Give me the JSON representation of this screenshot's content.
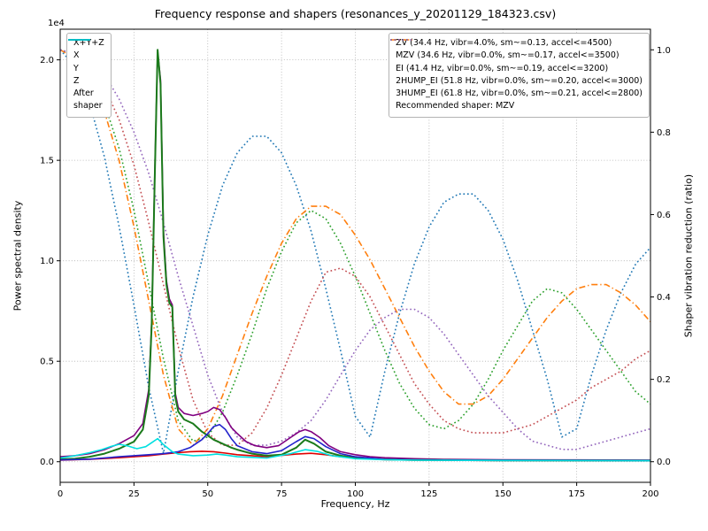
{
  "chart_data": {
    "type": "line",
    "title": "Frequency response and shapers (resonances_y_20201129_184323.csv)",
    "xlabel": "Frequency, Hz",
    "ylabel_left": "Power spectral density",
    "ylabel_right": "Shaper vibration reduction (ratio)",
    "offset_text": "1e4",
    "grid": true,
    "legend_note": "Recommended shaper: MZV",
    "xlim": [
      0,
      200
    ],
    "ylim_left": [
      -1025,
      21525
    ],
    "ylim_right": [
      -0.05,
      1.05
    ],
    "xticks": [
      0,
      25,
      50,
      75,
      100,
      125,
      150,
      175,
      200
    ],
    "yticks_left": {
      "values": [
        0,
        5000,
        10000,
        15000,
        20000
      ],
      "labels": [
        "0.0",
        "0.5",
        "1.0",
        "1.5",
        "2.0"
      ]
    },
    "yticks_right": {
      "values": [
        0.0,
        0.2,
        0.4,
        0.6,
        0.8,
        1.0
      ],
      "labels": [
        "0.0",
        "0.2",
        "0.4",
        "0.6",
        "0.8",
        "1.0"
      ]
    },
    "psd_series": [
      {
        "name": "xyz",
        "label": "X+Y+Z",
        "color": "#800080",
        "style": "solid",
        "width": 1.6,
        "x": [
          0,
          5,
          10,
          15,
          20,
          25,
          28,
          30,
          31,
          32,
          33,
          34,
          35,
          36,
          37,
          38,
          39,
          40,
          42,
          45,
          48,
          50,
          52,
          54,
          56,
          58,
          60,
          63,
          66,
          70,
          74,
          78,
          81,
          83,
          85,
          88,
          91,
          95,
          100,
          105,
          110,
          120,
          130,
          150,
          175,
          200
        ],
        "y": [
          250,
          300,
          400,
          600,
          900,
          1300,
          1900,
          3600,
          7000,
          14000,
          20400,
          19000,
          11500,
          9000,
          8100,
          7800,
          3400,
          2700,
          2400,
          2300,
          2400,
          2500,
          2700,
          2600,
          2200,
          1700,
          1400,
          1000,
          800,
          700,
          800,
          1200,
          1500,
          1600,
          1500,
          1200,
          800,
          500,
          350,
          250,
          200,
          150,
          120,
          100,
          90,
          80
        ]
      },
      {
        "name": "x",
        "label": "X",
        "color": "#e00000",
        "style": "solid",
        "width": 1.6,
        "x": [
          0,
          10,
          20,
          30,
          35,
          40,
          44,
          48,
          52,
          56,
          60,
          70,
          80,
          85,
          90,
          95,
          100,
          110,
          120,
          150,
          200
        ],
        "y": [
          80,
          120,
          200,
          300,
          380,
          450,
          500,
          520,
          500,
          430,
          350,
          250,
          380,
          420,
          350,
          250,
          180,
          100,
          80,
          60,
          50
        ]
      },
      {
        "name": "y",
        "label": "Y",
        "color": "#1b7a1b",
        "style": "solid",
        "width": 2.0,
        "x": [
          0,
          5,
          10,
          15,
          20,
          25,
          28,
          30,
          31,
          32,
          33,
          34,
          35,
          36,
          37,
          38,
          39,
          40,
          42,
          45,
          48,
          50,
          52,
          55,
          58,
          60,
          65,
          70,
          75,
          80,
          83,
          86,
          90,
          95,
          100,
          110,
          120,
          150,
          200
        ],
        "y": [
          120,
          150,
          250,
          400,
          650,
          1000,
          1600,
          3300,
          6800,
          13800,
          20500,
          18800,
          11200,
          8800,
          7900,
          7700,
          3200,
          2500,
          2100,
          1900,
          1500,
          1300,
          1100,
          900,
          700,
          600,
          400,
          300,
          350,
          700,
          1100,
          900,
          500,
          300,
          200,
          120,
          90,
          70,
          60
        ]
      },
      {
        "name": "z",
        "label": "Z",
        "color": "#2222cc",
        "style": "solid",
        "width": 1.6,
        "x": [
          0,
          10,
          20,
          30,
          35,
          40,
          44,
          48,
          50,
          52,
          54,
          56,
          58,
          60,
          65,
          70,
          75,
          80,
          83,
          86,
          90,
          95,
          100,
          110,
          120,
          150,
          200
        ],
        "y": [
          90,
          130,
          250,
          350,
          400,
          500,
          700,
          1100,
          1400,
          1750,
          1850,
          1600,
          1150,
          800,
          500,
          400,
          550,
          1000,
          1250,
          1150,
          750,
          400,
          250,
          120,
          90,
          70,
          60
        ]
      },
      {
        "name": "after-shaper",
        "label": "After\nshaper",
        "color": "#00e0e0",
        "style": "solid",
        "width": 1.6,
        "x": [
          0,
          5,
          10,
          14,
          17,
          20,
          23,
          26,
          29,
          31,
          33,
          35,
          38,
          40,
          45,
          50,
          53,
          56,
          60,
          70,
          78,
          83,
          87,
          92,
          100,
          110,
          120,
          150,
          200
        ],
        "y": [
          180,
          300,
          450,
          600,
          750,
          870,
          780,
          650,
          750,
          950,
          1150,
          850,
          500,
          380,
          300,
          330,
          380,
          330,
          250,
          180,
          400,
          600,
          520,
          300,
          150,
          100,
          80,
          60,
          50
        ]
      }
    ],
    "shaper_x": [
      0,
      5,
      10,
      15,
      20,
      25,
      30,
      35,
      40,
      45,
      50,
      55,
      60,
      65,
      70,
      75,
      80,
      85,
      90,
      95,
      100,
      105,
      110,
      115,
      120,
      125,
      130,
      135,
      140,
      145,
      150,
      155,
      160,
      165,
      170,
      175,
      180,
      185,
      190,
      195,
      200
    ],
    "shaper_series": [
      {
        "name": "zv",
        "label": "ZV (34.4 Hz, vibr=4.0%, sm~=0.13, accel<=4500)",
        "color": "#1f77b4",
        "style": "dotted",
        "width": 1.6,
        "y": [
          1.0,
          0.96,
          0.87,
          0.74,
          0.57,
          0.38,
          0.18,
          0.02,
          0.22,
          0.4,
          0.55,
          0.67,
          0.75,
          0.79,
          0.79,
          0.75,
          0.67,
          0.56,
          0.42,
          0.27,
          0.11,
          0.06,
          0.22,
          0.36,
          0.48,
          0.57,
          0.63,
          0.65,
          0.65,
          0.61,
          0.54,
          0.44,
          0.32,
          0.2,
          0.06,
          0.08,
          0.21,
          0.32,
          0.41,
          0.48,
          0.52
        ]
      },
      {
        "name": "mzv",
        "label": "MZV (34.6 Hz, vibr=0.0%, sm~=0.17, accel<=3500)",
        "color": "#ff7f0e",
        "style": "dashdot",
        "width": 1.6,
        "y": [
          1.0,
          0.98,
          0.93,
          0.85,
          0.73,
          0.57,
          0.39,
          0.21,
          0.08,
          0.04,
          0.08,
          0.16,
          0.26,
          0.36,
          0.45,
          0.53,
          0.59,
          0.62,
          0.62,
          0.6,
          0.55,
          0.49,
          0.42,
          0.35,
          0.28,
          0.22,
          0.17,
          0.14,
          0.14,
          0.16,
          0.2,
          0.25,
          0.3,
          0.35,
          0.39,
          0.42,
          0.43,
          0.43,
          0.41,
          0.38,
          0.34
        ]
      },
      {
        "name": "ei",
        "label": "EI (41.4 Hz, vibr=0.0%, sm~=0.19, accel<=3200)",
        "color": "#2ca02c",
        "style": "dotted",
        "width": 1.6,
        "y": [
          1.0,
          0.99,
          0.95,
          0.87,
          0.76,
          0.61,
          0.43,
          0.25,
          0.1,
          0.05,
          0.06,
          0.12,
          0.21,
          0.31,
          0.42,
          0.51,
          0.58,
          0.61,
          0.59,
          0.53,
          0.45,
          0.36,
          0.27,
          0.19,
          0.13,
          0.09,
          0.08,
          0.1,
          0.14,
          0.2,
          0.27,
          0.33,
          0.39,
          0.42,
          0.41,
          0.37,
          0.32,
          0.27,
          0.22,
          0.17,
          0.14
        ]
      },
      {
        "name": "2hump-ei",
        "label": "2HUMP_EI (51.8 Hz, vibr=0.0%, sm~=0.20, accel<=3000)",
        "color": "#c44e52",
        "style": "dotted",
        "width": 1.6,
        "y": [
          1.0,
          0.99,
          0.96,
          0.91,
          0.83,
          0.72,
          0.58,
          0.43,
          0.28,
          0.15,
          0.07,
          0.04,
          0.04,
          0.07,
          0.13,
          0.21,
          0.3,
          0.39,
          0.46,
          0.47,
          0.45,
          0.4,
          0.33,
          0.26,
          0.19,
          0.14,
          0.1,
          0.08,
          0.07,
          0.07,
          0.07,
          0.08,
          0.09,
          0.11,
          0.13,
          0.15,
          0.18,
          0.2,
          0.22,
          0.25,
          0.27
        ]
      },
      {
        "name": "3hump-ei",
        "label": "3HUMP_EI (61.8 Hz, vibr=0.0%, sm~=0.21, accel<=2800)",
        "color": "#9467bd",
        "style": "dotted",
        "width": 1.6,
        "y": [
          1.0,
          0.99,
          0.97,
          0.94,
          0.88,
          0.8,
          0.7,
          0.58,
          0.45,
          0.33,
          0.21,
          0.12,
          0.06,
          0.04,
          0.04,
          0.05,
          0.07,
          0.1,
          0.15,
          0.21,
          0.27,
          0.32,
          0.35,
          0.37,
          0.37,
          0.35,
          0.31,
          0.26,
          0.21,
          0.16,
          0.12,
          0.08,
          0.05,
          0.04,
          0.03,
          0.03,
          0.04,
          0.05,
          0.06,
          0.07,
          0.08
        ]
      }
    ]
  }
}
